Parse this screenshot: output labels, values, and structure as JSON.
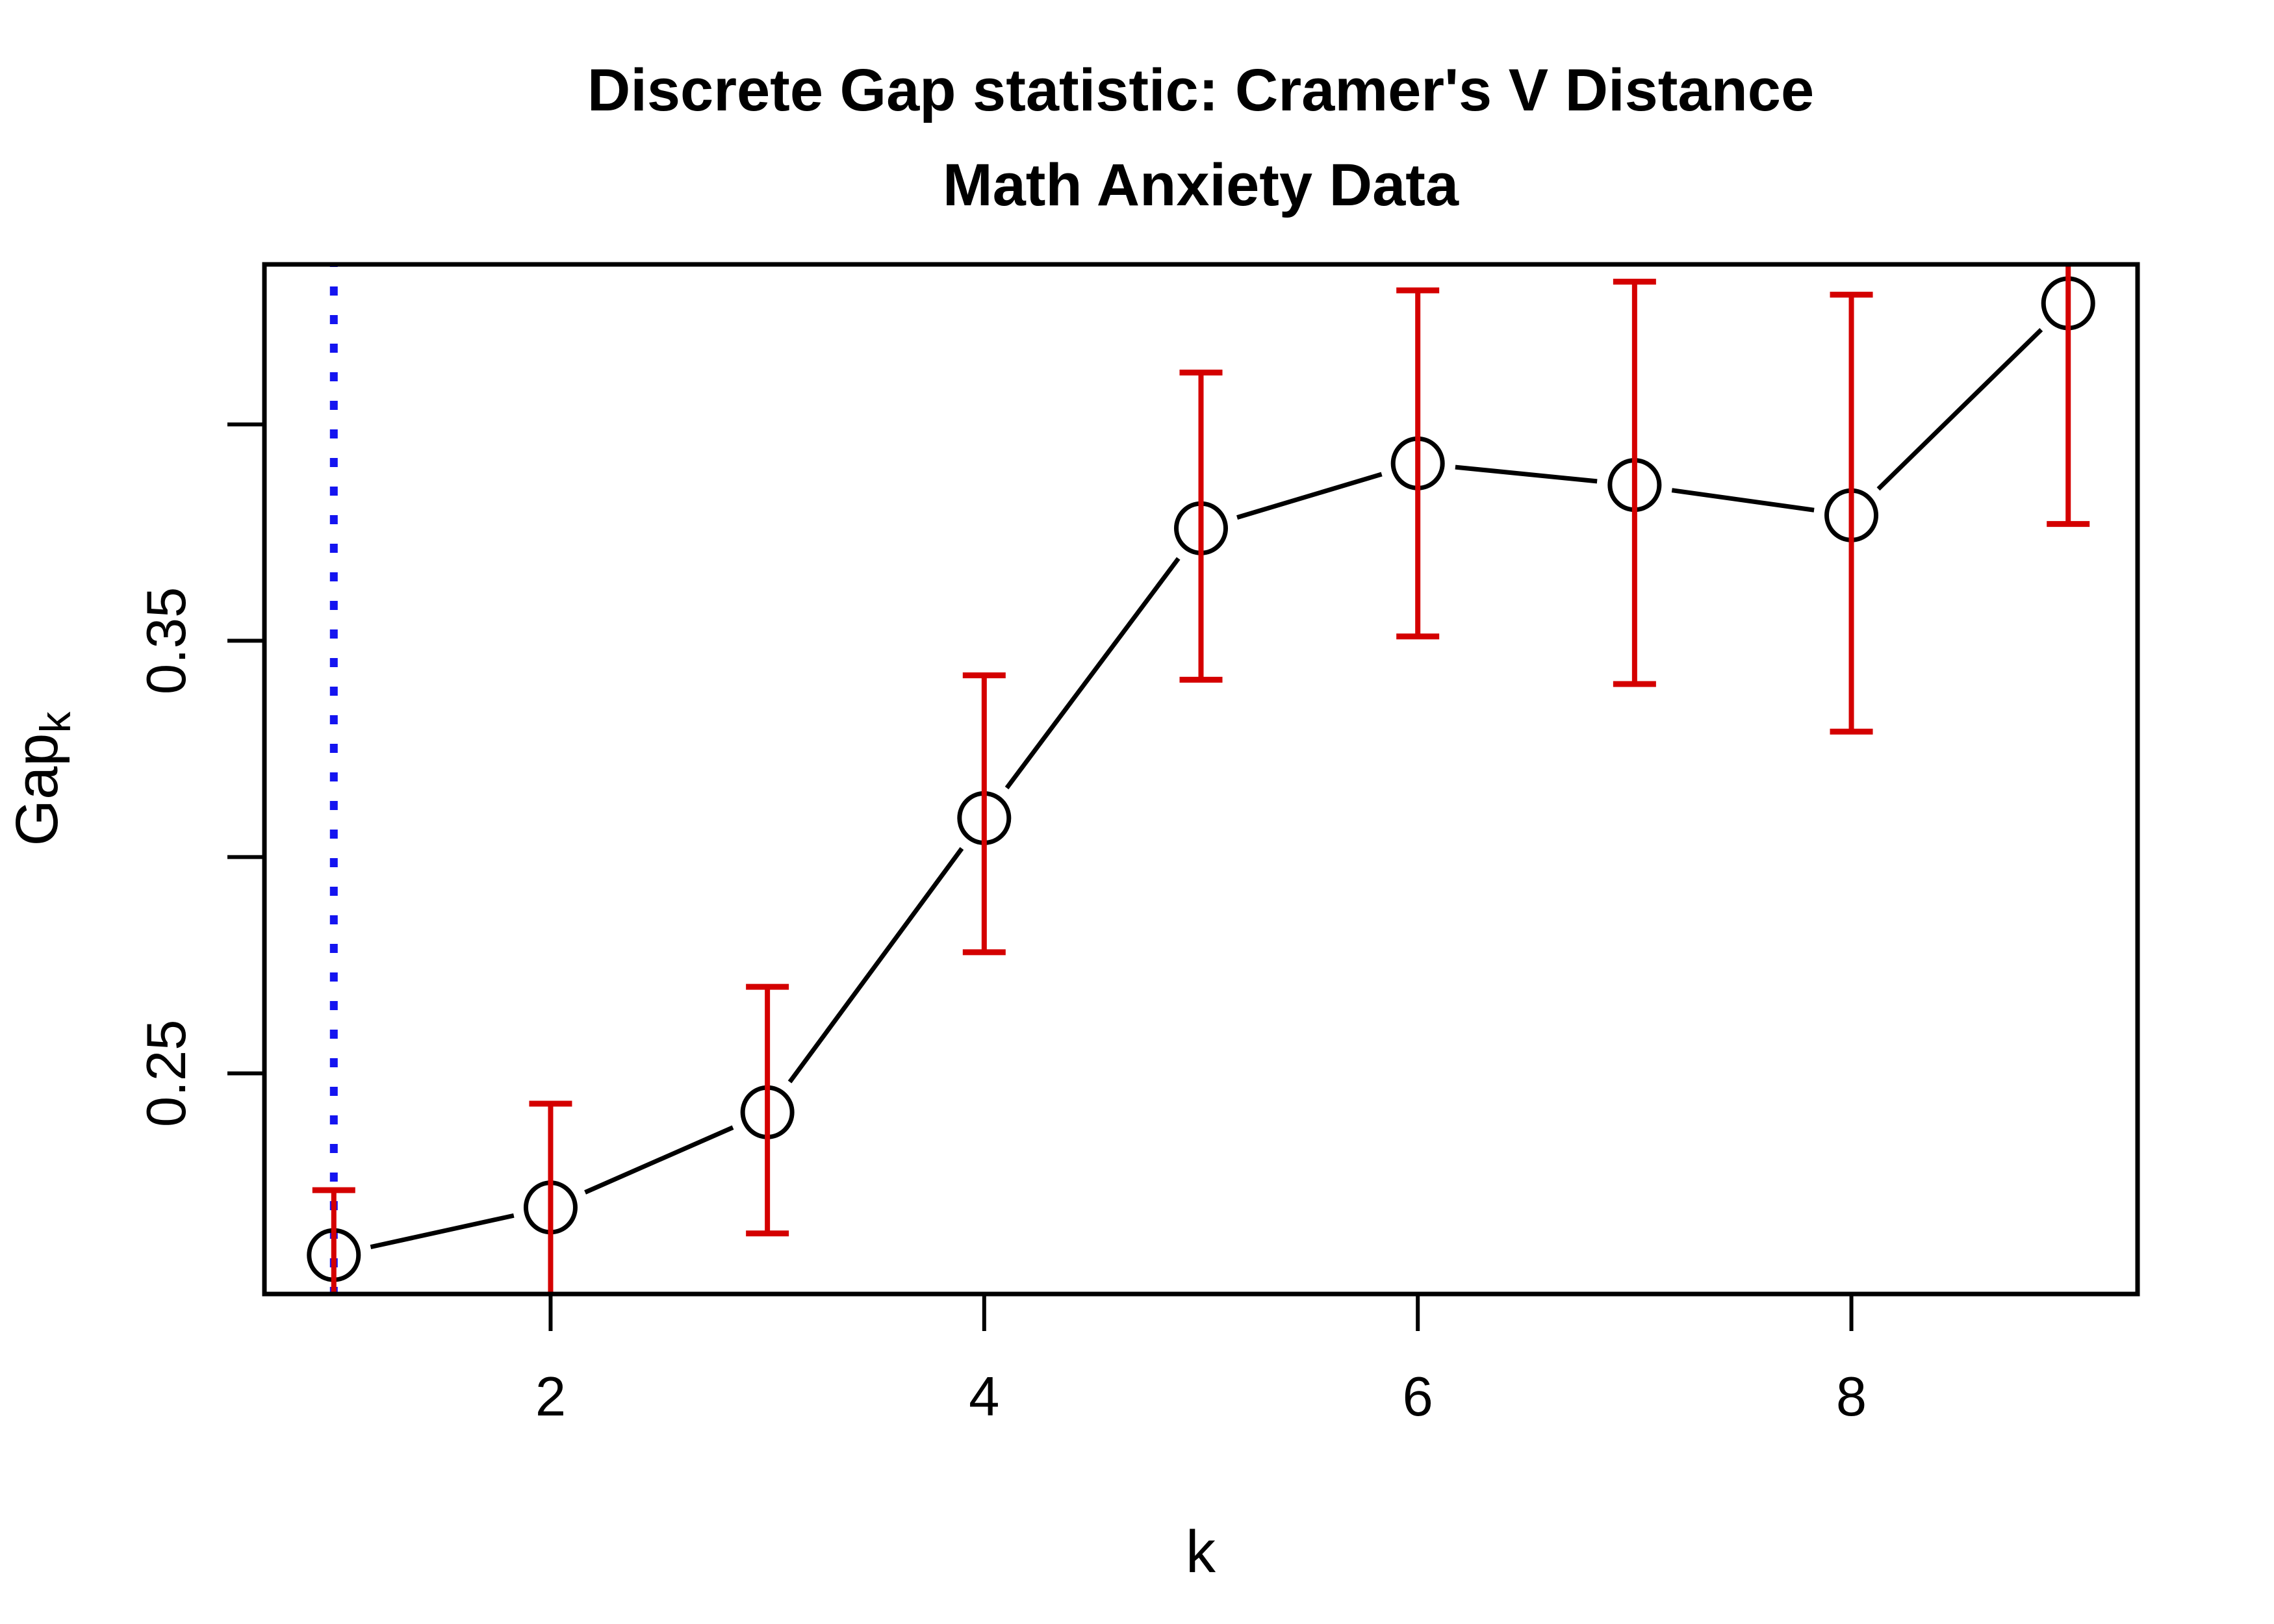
{
  "chart_data": {
    "type": "line",
    "title": "Discrete Gap statistic: Cramer's V Distance",
    "subtitle": "Math Anxiety Data",
    "xlabel": "k",
    "ylabel_base": "Gap",
    "ylabel_sub": "k",
    "x": [
      1,
      2,
      3,
      4,
      5,
      6,
      7,
      8,
      9
    ],
    "series": [
      {
        "name": "Gap statistic",
        "values": [
          0.208,
          0.219,
          0.241,
          0.309,
          0.376,
          0.391,
          0.386,
          0.379,
          0.428
        ]
      }
    ],
    "error_high": [
      0.223,
      0.243,
      0.27,
      0.342,
      0.412,
      0.431,
      0.433,
      0.43,
      0.445
    ],
    "error_low": [
      0.193,
      0.192,
      0.213,
      0.278,
      0.341,
      0.351,
      0.34,
      0.329,
      0.377
    ],
    "vline_x": 1,
    "x_ticks": [
      {
        "value": 2,
        "label": "2"
      },
      {
        "value": 4,
        "label": "4"
      },
      {
        "value": 6,
        "label": "6"
      },
      {
        "value": 8,
        "label": "8"
      }
    ],
    "y_ticks": [
      {
        "value": 0.25,
        "label": "0.25"
      },
      {
        "value": 0.3,
        "label": ""
      },
      {
        "value": 0.35,
        "label": "0.35"
      },
      {
        "value": 0.4,
        "label": ""
      }
    ],
    "xlim": [
      0.68,
      9.32
    ],
    "ylim": [
      0.199,
      0.437
    ],
    "grid": false,
    "legend": null,
    "colors": {
      "line": "#000000",
      "marker_stroke": "#000000",
      "error_bar": "#d40000",
      "vline": "#1414f0",
      "box": "#000000",
      "text": "#000000"
    }
  }
}
